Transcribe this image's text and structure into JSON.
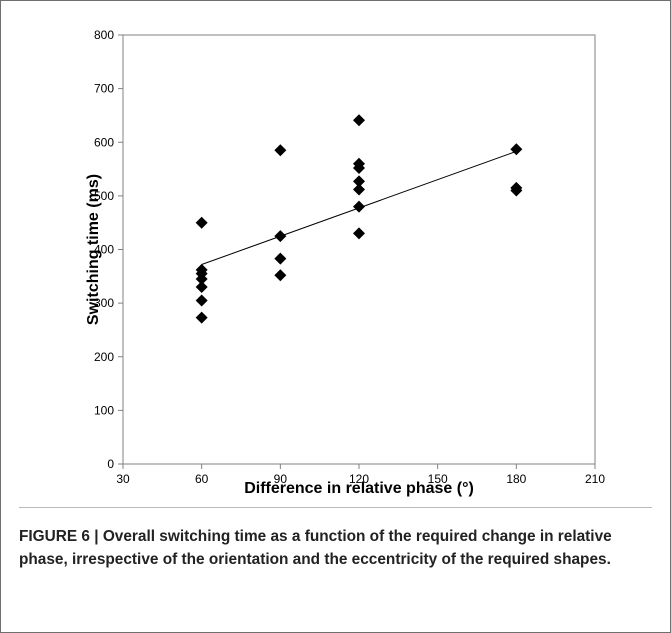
{
  "chart_data": {
    "type": "scatter",
    "xlabel": "Difference in relative phase (°)",
    "ylabel": "Switching time (ms)",
    "xlim": [
      30,
      210
    ],
    "ylim": [
      0,
      800
    ],
    "xticks": [
      30,
      60,
      90,
      120,
      150,
      180,
      210
    ],
    "yticks": [
      0,
      100,
      200,
      300,
      400,
      500,
      600,
      700,
      800
    ],
    "grid": false,
    "marker": "diamond",
    "color": "#000000",
    "points": [
      {
        "x": 60,
        "y": 450
      },
      {
        "x": 60,
        "y": 362
      },
      {
        "x": 60,
        "y": 355
      },
      {
        "x": 60,
        "y": 345
      },
      {
        "x": 60,
        "y": 330
      },
      {
        "x": 60,
        "y": 305
      },
      {
        "x": 60,
        "y": 273
      },
      {
        "x": 90,
        "y": 585
      },
      {
        "x": 90,
        "y": 425
      },
      {
        "x": 90,
        "y": 383
      },
      {
        "x": 90,
        "y": 352
      },
      {
        "x": 120,
        "y": 641
      },
      {
        "x": 120,
        "y": 560
      },
      {
        "x": 120,
        "y": 552
      },
      {
        "x": 120,
        "y": 527
      },
      {
        "x": 120,
        "y": 512
      },
      {
        "x": 120,
        "y": 480
      },
      {
        "x": 120,
        "y": 430
      },
      {
        "x": 180,
        "y": 587
      },
      {
        "x": 180,
        "y": 515
      },
      {
        "x": 180,
        "y": 510
      }
    ],
    "trendline": {
      "x": [
        60,
        180
      ],
      "y": [
        372,
        583
      ]
    }
  },
  "caption": "FIGURE 6 | Overall switching time as a function of the required change in relative phase, irrespective of the orientation and the eccentricity of the required shapes."
}
